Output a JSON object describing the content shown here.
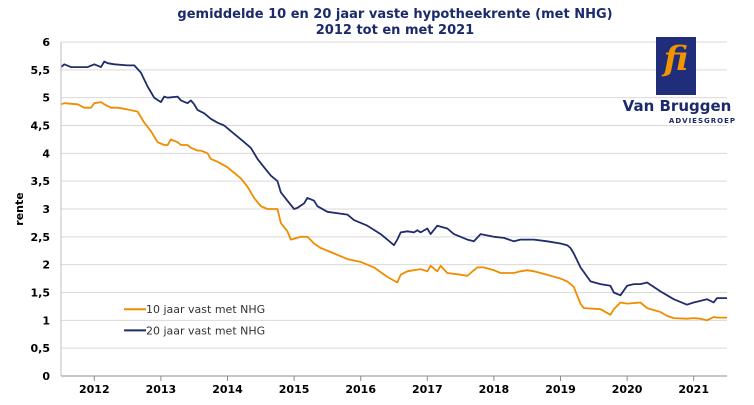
{
  "chart_data": {
    "type": "line",
    "title": "gemiddelde 10 en 20 jaar vaste hypotheekrente (met NHG)",
    "subtitle": "2012 tot en met 2021",
    "xlabel": "",
    "ylabel": "rente",
    "ylim": [
      0,
      6
    ],
    "yticks": [
      "0",
      "0,5",
      "1",
      "1,5",
      "2",
      "2,5",
      "3",
      "3,5",
      "4",
      "4,5",
      "5",
      "5,5",
      "6"
    ],
    "xlim": [
      2011.5,
      2021.5
    ],
    "xticks": [
      "2012",
      "2013",
      "2014",
      "2015",
      "2016",
      "2017",
      "2018",
      "2019",
      "2020",
      "2021"
    ],
    "grid": true,
    "legend_position": "lower-left",
    "series": [
      {
        "name": "10 jaar vast met NHG",
        "color": "#f08c00",
        "x": [
          2011.5,
          2011.55,
          2011.75,
          2011.85,
          2011.95,
          2012.0,
          2012.1,
          2012.15,
          2012.25,
          2012.35,
          2012.45,
          2012.65,
          2012.75,
          2012.85,
          2012.95,
          2013.05,
          2013.1,
          2013.15,
          2013.25,
          2013.3,
          2013.4,
          2013.45,
          2013.55,
          2013.6,
          2013.7,
          2013.75,
          2013.85,
          2014.0,
          2014.1,
          2014.2,
          2014.3,
          2014.4,
          2014.5,
          2014.6,
          2014.75,
          2014.8,
          2014.9,
          2014.95,
          2015.1,
          2015.2,
          2015.3,
          2015.4,
          2015.6,
          2015.8,
          2016.0,
          2016.2,
          2016.4,
          2016.55,
          2016.6,
          2016.7,
          2016.9,
          2017.0,
          2017.05,
          2017.15,
          2017.2,
          2017.3,
          2017.5,
          2017.6,
          2017.65,
          2017.75,
          2017.85,
          2018.0,
          2018.1,
          2018.3,
          2018.4,
          2018.5,
          2018.6,
          2018.8,
          2019.0,
          2019.1,
          2019.15,
          2019.2,
          2019.25,
          2019.3,
          2019.35,
          2019.6,
          2019.75,
          2019.8,
          2019.9,
          2020.0,
          2020.2,
          2020.3,
          2020.5,
          2020.6,
          2020.7,
          2020.9,
          2021.0,
          2021.1,
          2021.2,
          2021.3,
          2021.35,
          2021.5
        ],
        "values": [
          4.88,
          4.9,
          4.88,
          4.82,
          4.82,
          4.9,
          4.92,
          4.88,
          4.82,
          4.82,
          4.8,
          4.75,
          4.55,
          4.4,
          4.2,
          4.15,
          4.15,
          4.25,
          4.2,
          4.15,
          4.15,
          4.1,
          4.05,
          4.05,
          4.0,
          3.9,
          3.85,
          3.75,
          3.65,
          3.55,
          3.4,
          3.2,
          3.05,
          3.0,
          3.0,
          2.75,
          2.6,
          2.45,
          2.5,
          2.5,
          2.38,
          2.3,
          2.2,
          2.1,
          2.05,
          1.95,
          1.78,
          1.68,
          1.82,
          1.88,
          1.92,
          1.88,
          1.98,
          1.88,
          1.98,
          1.85,
          1.82,
          1.8,
          1.85,
          1.95,
          1.95,
          1.9,
          1.85,
          1.85,
          1.88,
          1.9,
          1.88,
          1.82,
          1.75,
          1.7,
          1.65,
          1.6,
          1.45,
          1.3,
          1.22,
          1.2,
          1.1,
          1.2,
          1.32,
          1.3,
          1.32,
          1.22,
          1.15,
          1.08,
          1.04,
          1.03,
          1.04,
          1.03,
          1.0,
          1.06,
          1.05,
          1.05
        ]
      },
      {
        "name": "20 jaar vast met NHG",
        "color": "#1f2d6b",
        "x": [
          2011.5,
          2011.55,
          2011.65,
          2011.9,
          2012.0,
          2012.1,
          2012.15,
          2012.2,
          2012.3,
          2012.5,
          2012.6,
          2012.7,
          2012.8,
          2012.9,
          2013.0,
          2013.05,
          2013.1,
          2013.25,
          2013.3,
          2013.4,
          2013.45,
          2013.5,
          2013.55,
          2013.65,
          2013.75,
          2013.85,
          2013.95,
          2014.05,
          2014.15,
          2014.25,
          2014.35,
          2014.45,
          2014.55,
          2014.65,
          2014.75,
          2014.8,
          2014.9,
          2015.0,
          2015.05,
          2015.15,
          2015.2,
          2015.3,
          2015.35,
          2015.5,
          2015.8,
          2015.9,
          2016.1,
          2016.3,
          2016.4,
          2016.5,
          2016.55,
          2016.6,
          2016.7,
          2016.8,
          2016.85,
          2016.9,
          2017.0,
          2017.05,
          2017.15,
          2017.3,
          2017.4,
          2017.5,
          2017.6,
          2017.7,
          2017.8,
          2018.0,
          2018.15,
          2018.3,
          2018.4,
          2018.6,
          2018.8,
          2019.0,
          2019.1,
          2019.15,
          2019.2,
          2019.3,
          2019.45,
          2019.6,
          2019.75,
          2019.8,
          2019.9,
          2020.0,
          2020.1,
          2020.2,
          2020.3,
          2020.4,
          2020.5,
          2020.6,
          2020.7,
          2020.9,
          2021.0,
          2021.1,
          2021.2,
          2021.3,
          2021.35,
          2021.5
        ],
        "values": [
          5.55,
          5.6,
          5.55,
          5.55,
          5.6,
          5.55,
          5.65,
          5.62,
          5.6,
          5.58,
          5.58,
          5.45,
          5.2,
          5.0,
          4.92,
          5.02,
          5.0,
          5.02,
          4.95,
          4.9,
          4.95,
          4.88,
          4.78,
          4.72,
          4.62,
          4.55,
          4.5,
          4.4,
          4.3,
          4.2,
          4.1,
          3.9,
          3.75,
          3.6,
          3.5,
          3.3,
          3.15,
          3.0,
          3.02,
          3.1,
          3.2,
          3.15,
          3.05,
          2.95,
          2.9,
          2.8,
          2.7,
          2.55,
          2.45,
          2.35,
          2.45,
          2.58,
          2.6,
          2.58,
          2.62,
          2.58,
          2.65,
          2.55,
          2.7,
          2.65,
          2.55,
          2.5,
          2.45,
          2.42,
          2.55,
          2.5,
          2.48,
          2.42,
          2.45,
          2.45,
          2.42,
          2.38,
          2.35,
          2.3,
          2.2,
          1.95,
          1.7,
          1.65,
          1.62,
          1.5,
          1.45,
          1.62,
          1.65,
          1.65,
          1.68,
          1.6,
          1.52,
          1.45,
          1.38,
          1.28,
          1.32,
          1.35,
          1.38,
          1.32,
          1.4,
          1.4
        ]
      }
    ]
  },
  "logo": {
    "mark": "fi",
    "name": "Van Bruggen",
    "subtitle": "ADVIESGROEP"
  }
}
